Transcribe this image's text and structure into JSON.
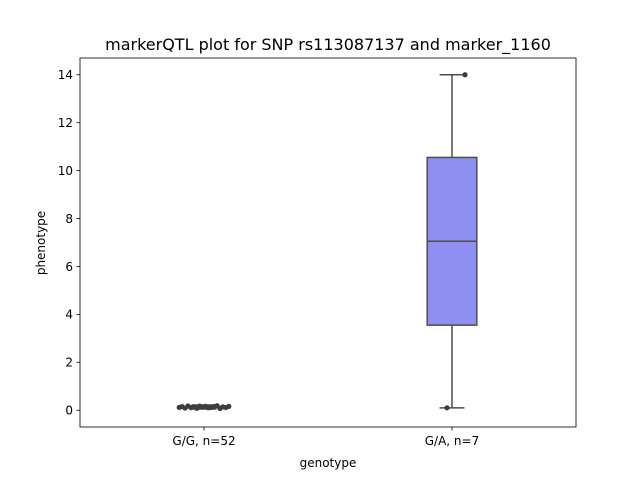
{
  "chart_data": {
    "type": "box",
    "title": "markerQTL plot for SNP rs113087137 and marker_1160",
    "xlabel": "genotype",
    "ylabel": "phenotype",
    "ylim": [
      -0.7,
      14.7
    ],
    "yticks": [
      0,
      2,
      4,
      6,
      8,
      10,
      12,
      14
    ],
    "grid": false,
    "categories": [
      "G/G, n=52",
      "G/A, n=7"
    ],
    "boxes": [
      {
        "category": "G/G, n=52",
        "whisker_low": 0.05,
        "q1": 0.1,
        "median": 0.13,
        "q3": 0.16,
        "whisker_high": 0.22,
        "fliers": [
          0.12,
          0.15,
          0.09,
          0.18,
          0.11,
          0.14,
          0.08,
          0.17,
          0.13,
          0.16,
          0.1,
          0.12,
          0.15,
          0.19,
          0.07,
          0.14,
          0.11,
          0.16
        ],
        "fill": "#8f8ff2"
      },
      {
        "category": "G/A, n=7",
        "whisker_low": 0.1,
        "q1": 3.55,
        "median": 7.05,
        "q3": 10.55,
        "whisker_high": 14.0,
        "fliers": [
          0.1,
          14.0
        ],
        "fill": "#8f8ff2"
      }
    ],
    "colors": {
      "box_fill": "#8f8ff2",
      "box_edge": "#4d4d4d",
      "flier": "#3d3d3d"
    }
  }
}
